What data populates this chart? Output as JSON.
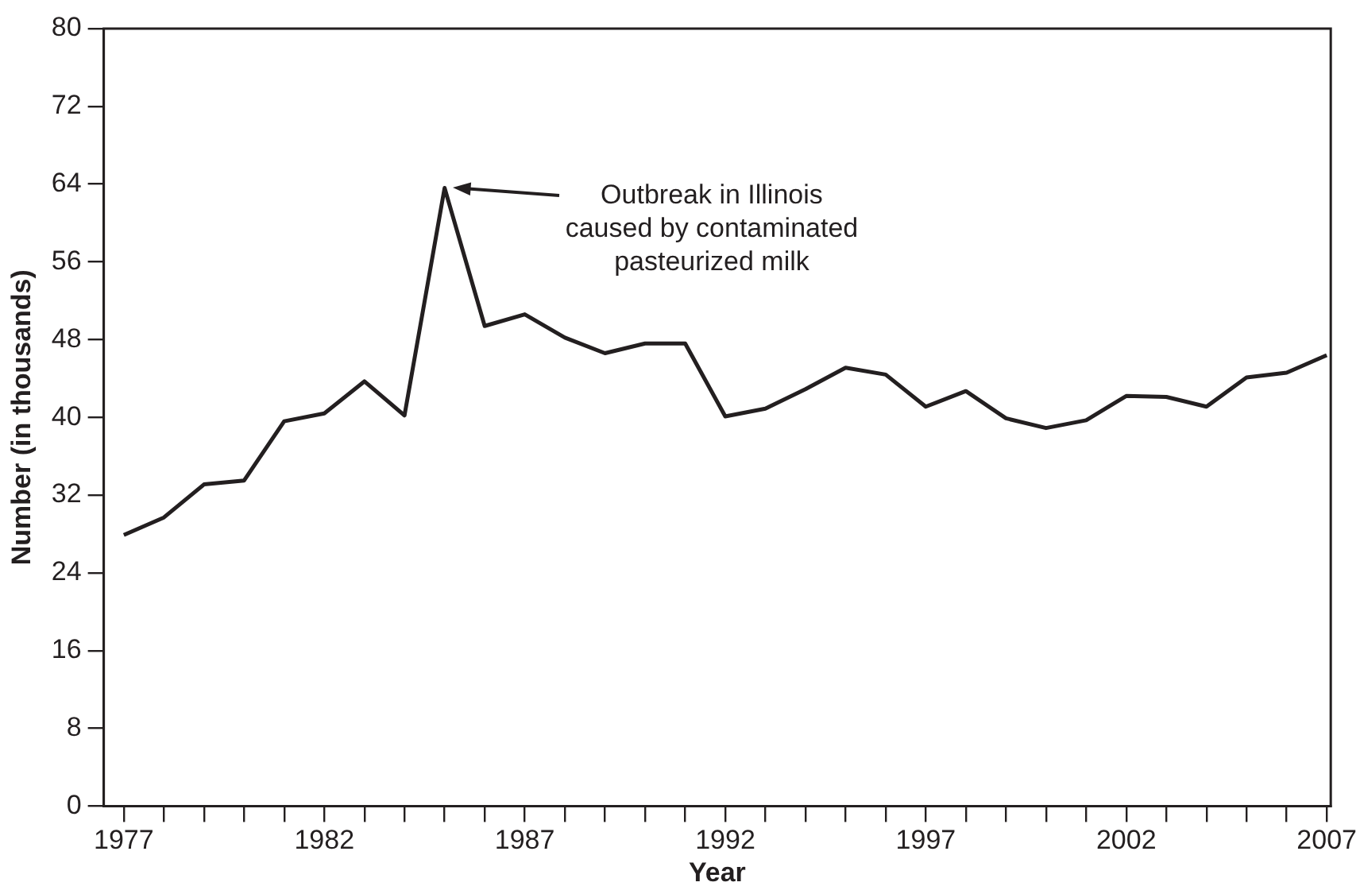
{
  "chart_data": {
    "type": "line",
    "xlabel": "Year",
    "ylabel": "Number (in thousands)",
    "x": [
      1977,
      1978,
      1979,
      1980,
      1981,
      1982,
      1983,
      1984,
      1985,
      1986,
      1987,
      1988,
      1989,
      1990,
      1991,
      1992,
      1993,
      1994,
      1995,
      1996,
      1997,
      1998,
      1999,
      2000,
      2001,
      2002,
      2003,
      2004,
      2005,
      2006,
      2007
    ],
    "values": [
      27.9,
      29.7,
      33.1,
      33.5,
      39.6,
      40.4,
      43.7,
      40.2,
      63.6,
      49.4,
      50.6,
      48.2,
      46.6,
      47.6,
      47.6,
      40.1,
      40.9,
      42.9,
      45.1,
      44.4,
      41.1,
      42.7,
      39.9,
      38.9,
      39.7,
      42.2,
      42.1,
      41.1,
      44.1,
      44.6,
      46.4
    ],
    "color": "#231f20",
    "xlim": [
      1976.5,
      2007.1
    ],
    "xticks": [
      1977,
      {
        "value": 1978,
        "label": null
      },
      {
        "value": 1979,
        "label": null
      },
      {
        "value": 1980,
        "label": null
      },
      {
        "value": 1981,
        "label": null
      },
      1982,
      {
        "value": 1983,
        "label": null
      },
      {
        "value": 1984,
        "label": null
      },
      {
        "value": 1985,
        "label": null
      },
      {
        "value": 1986,
        "label": null
      },
      1987,
      {
        "value": 1988,
        "label": null
      },
      {
        "value": 1989,
        "label": null
      },
      {
        "value": 1990,
        "label": null
      },
      {
        "value": 1991,
        "label": null
      },
      1992,
      {
        "value": 1993,
        "label": null
      },
      {
        "value": 1994,
        "label": null
      },
      {
        "value": 1995,
        "label": null
      },
      {
        "value": 1996,
        "label": null
      },
      1997,
      {
        "value": 1998,
        "label": null
      },
      {
        "value": 1999,
        "label": null
      },
      {
        "value": 2000,
        "label": null
      },
      {
        "value": 2001,
        "label": null
      },
      2002,
      {
        "value": 2003,
        "label": null
      },
      {
        "value": 2004,
        "label": null
      },
      {
        "value": 2005,
        "label": null
      },
      {
        "value": 2006,
        "label": null
      },
      2007
    ],
    "ylim": [
      0,
      80
    ],
    "yticks": [
      0,
      8,
      16,
      24,
      32,
      40,
      48,
      56,
      64,
      72,
      80
    ],
    "grid": false,
    "legend": false,
    "marker": "none",
    "line_style": "solid",
    "annotations": [
      "Outbreak in Illinois\ncaused by contaminated\npasteurized milk"
    ]
  }
}
